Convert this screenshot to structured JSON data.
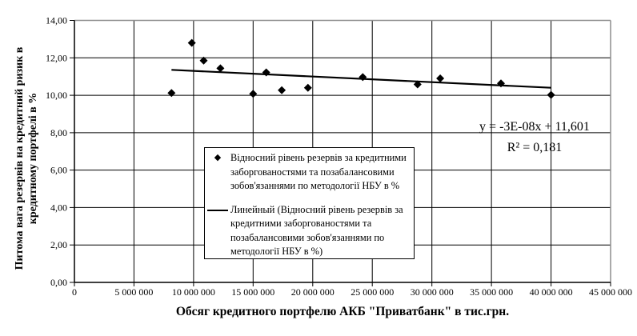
{
  "chart_data": {
    "type": "scatter",
    "title": "",
    "x_axis": {
      "title": "Обсяг кредитного портфелю АКБ \"Приватбанк\" в тис.грн.",
      "min": 0,
      "max": 45000000,
      "tick_values": [
        0,
        5000000,
        10000000,
        15000000,
        20000000,
        25000000,
        30000000,
        35000000,
        40000000,
        45000000
      ],
      "tick_labels": [
        "0",
        "5 000 000",
        "10 000 000",
        "15 000 000",
        "20 000 000",
        "25 000 000",
        "30 000 000",
        "35 000 000",
        "40 000 000",
        "45 000 000"
      ]
    },
    "y_axis": {
      "title_line1": "Питома вага резервів на кредитний ризик в",
      "title_line2": "кредитному портфелі в %",
      "min": 0,
      "max": 14,
      "tick_values": [
        0,
        2,
        4,
        6,
        8,
        10,
        12,
        14
      ],
      "tick_labels": [
        "0,00",
        "2,00",
        "4,00",
        "6,00",
        "8,00",
        "10,00",
        "12,00",
        "14,00"
      ]
    },
    "grid": true,
    "series": [
      {
        "name": "Відносний рівень резервів за кредитними заборгованостями та позабалансовими зобов'язаннями по методології НБУ в %",
        "marker": "diamond",
        "points": [
          [
            8150000,
            10.12
          ],
          [
            9850000,
            12.8
          ],
          [
            10850000,
            11.85
          ],
          [
            12250000,
            11.44
          ],
          [
            15000000,
            10.08
          ],
          [
            16100000,
            11.22
          ],
          [
            17400000,
            10.27
          ],
          [
            19600000,
            10.4
          ],
          [
            24200000,
            10.97
          ],
          [
            28800000,
            10.58
          ],
          [
            30700000,
            10.9
          ],
          [
            35800000,
            10.63
          ],
          [
            40000000,
            10.02
          ]
        ]
      }
    ],
    "trendline": {
      "name": "Линейный (Відносний рівень резервів за кредитними заборгованостями та позабалансовими зобов'язаннями по методології НБУ в %)",
      "slope": -3e-08,
      "intercept": 11.601,
      "x_start": 8150000,
      "x_end": 40000000,
      "equation_label": "y = -3E-08x + 11,601",
      "r2_label": "R² = 0,181"
    },
    "legend": {
      "position": "inside-bottom-center",
      "marker_glyph": "◆"
    },
    "colors": {
      "marker": "#000000",
      "trendline": "#000000",
      "gridline": "#000000",
      "plot_frame": "#8e8e8e",
      "background": "#ffffff"
    }
  }
}
